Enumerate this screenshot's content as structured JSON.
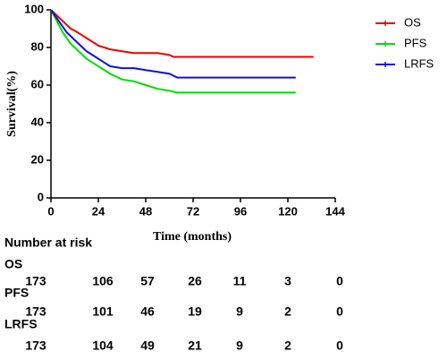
{
  "chart_data": {
    "type": "line",
    "step": true,
    "x_label": "Time (months)",
    "y_label": "Survival(%)",
    "xlim": [
      0,
      144
    ],
    "xticks": [
      0,
      24,
      48,
      72,
      96,
      120,
      144
    ],
    "ylim": [
      0,
      100
    ],
    "yticks": [
      0,
      20,
      40,
      60,
      80,
      100
    ],
    "series": [
      {
        "name": "OS",
        "color": "#ee0000",
        "x": [
          0,
          2,
          4,
          6,
          8,
          10,
          12,
          15,
          18,
          21,
          24,
          27,
          30,
          36,
          42,
          48,
          54,
          60,
          62,
          133
        ],
        "values": [
          100,
          98,
          96,
          94,
          92,
          90,
          89,
          87,
          85,
          83,
          81,
          80,
          79,
          78,
          77,
          77,
          77,
          76,
          75,
          75
        ]
      },
      {
        "name": "PFS",
        "color": "#00dd00",
        "x": [
          0,
          2,
          4,
          6,
          8,
          10,
          12,
          15,
          18,
          21,
          24,
          27,
          30,
          36,
          42,
          48,
          54,
          60,
          64,
          124
        ],
        "values": [
          100,
          96,
          92,
          88,
          85,
          82,
          80,
          77,
          74,
          72,
          70,
          68,
          66,
          63,
          62,
          60,
          58,
          57,
          56,
          56
        ]
      },
      {
        "name": "LRFS",
        "color": "#1010dd",
        "x": [
          0,
          2,
          4,
          6,
          8,
          10,
          12,
          15,
          18,
          21,
          24,
          27,
          30,
          36,
          42,
          48,
          54,
          60,
          64,
          124
        ],
        "values": [
          100,
          97,
          94,
          91,
          88,
          86,
          84,
          81,
          78,
          76,
          74,
          72,
          70,
          69,
          69,
          68,
          67,
          66,
          64,
          64
        ]
      }
    ],
    "risk_table": {
      "title": "Number at risk",
      "rows": [
        {
          "name": "OS",
          "values": [
            173,
            106,
            57,
            26,
            11,
            3,
            0
          ]
        },
        {
          "name": "PFS",
          "values": [
            173,
            101,
            46,
            19,
            9,
            2,
            0
          ]
        },
        {
          "name": "LRFS",
          "values": [
            173,
            104,
            49,
            21,
            9,
            2,
            0
          ]
        }
      ]
    }
  }
}
